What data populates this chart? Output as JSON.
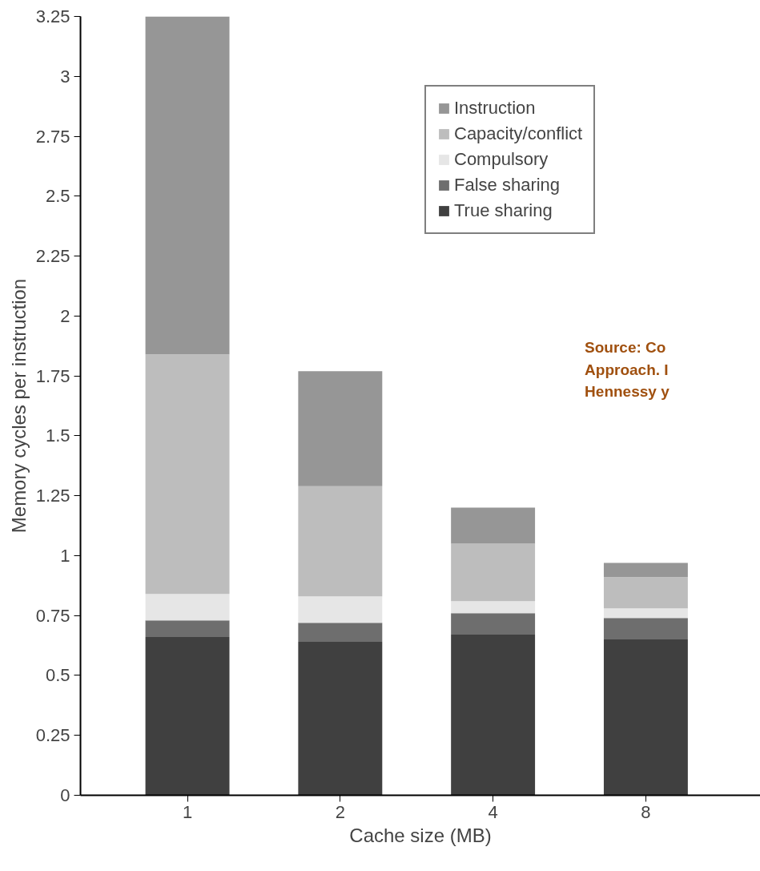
{
  "chart_data": {
    "type": "bar",
    "stacked": true,
    "xlabel": "Cache size (MB)",
    "ylabel": "Memory cycles per instruction",
    "categories": [
      "1",
      "2",
      "4",
      "8"
    ],
    "series": [
      {
        "name": "True sharing",
        "color": "#404040",
        "values": [
          0.66,
          0.64,
          0.67,
          0.65
        ]
      },
      {
        "name": "False sharing",
        "color": "#6e6e6e",
        "values": [
          0.07,
          0.08,
          0.09,
          0.09
        ]
      },
      {
        "name": "Compulsory",
        "color": "#e6e6e6",
        "values": [
          0.11,
          0.11,
          0.05,
          0.04
        ]
      },
      {
        "name": "Capacity/conflict",
        "color": "#bdbdbd",
        "values": [
          1.0,
          0.46,
          0.24,
          0.13
        ]
      },
      {
        "name": "Instruction",
        "color": "#969696",
        "values": [
          1.41,
          0.48,
          0.15,
          0.06
        ]
      }
    ],
    "ylim": [
      0,
      3.25
    ],
    "yticks": [
      0,
      0.25,
      0.5,
      0.75,
      1,
      1.25,
      1.5,
      1.75,
      2,
      2.25,
      2.5,
      2.75,
      3,
      3.25
    ],
    "grid": false,
    "legend": "top right",
    "annotations": [
      "Source: Co\nApproach. I\nHennessy y"
    ]
  }
}
